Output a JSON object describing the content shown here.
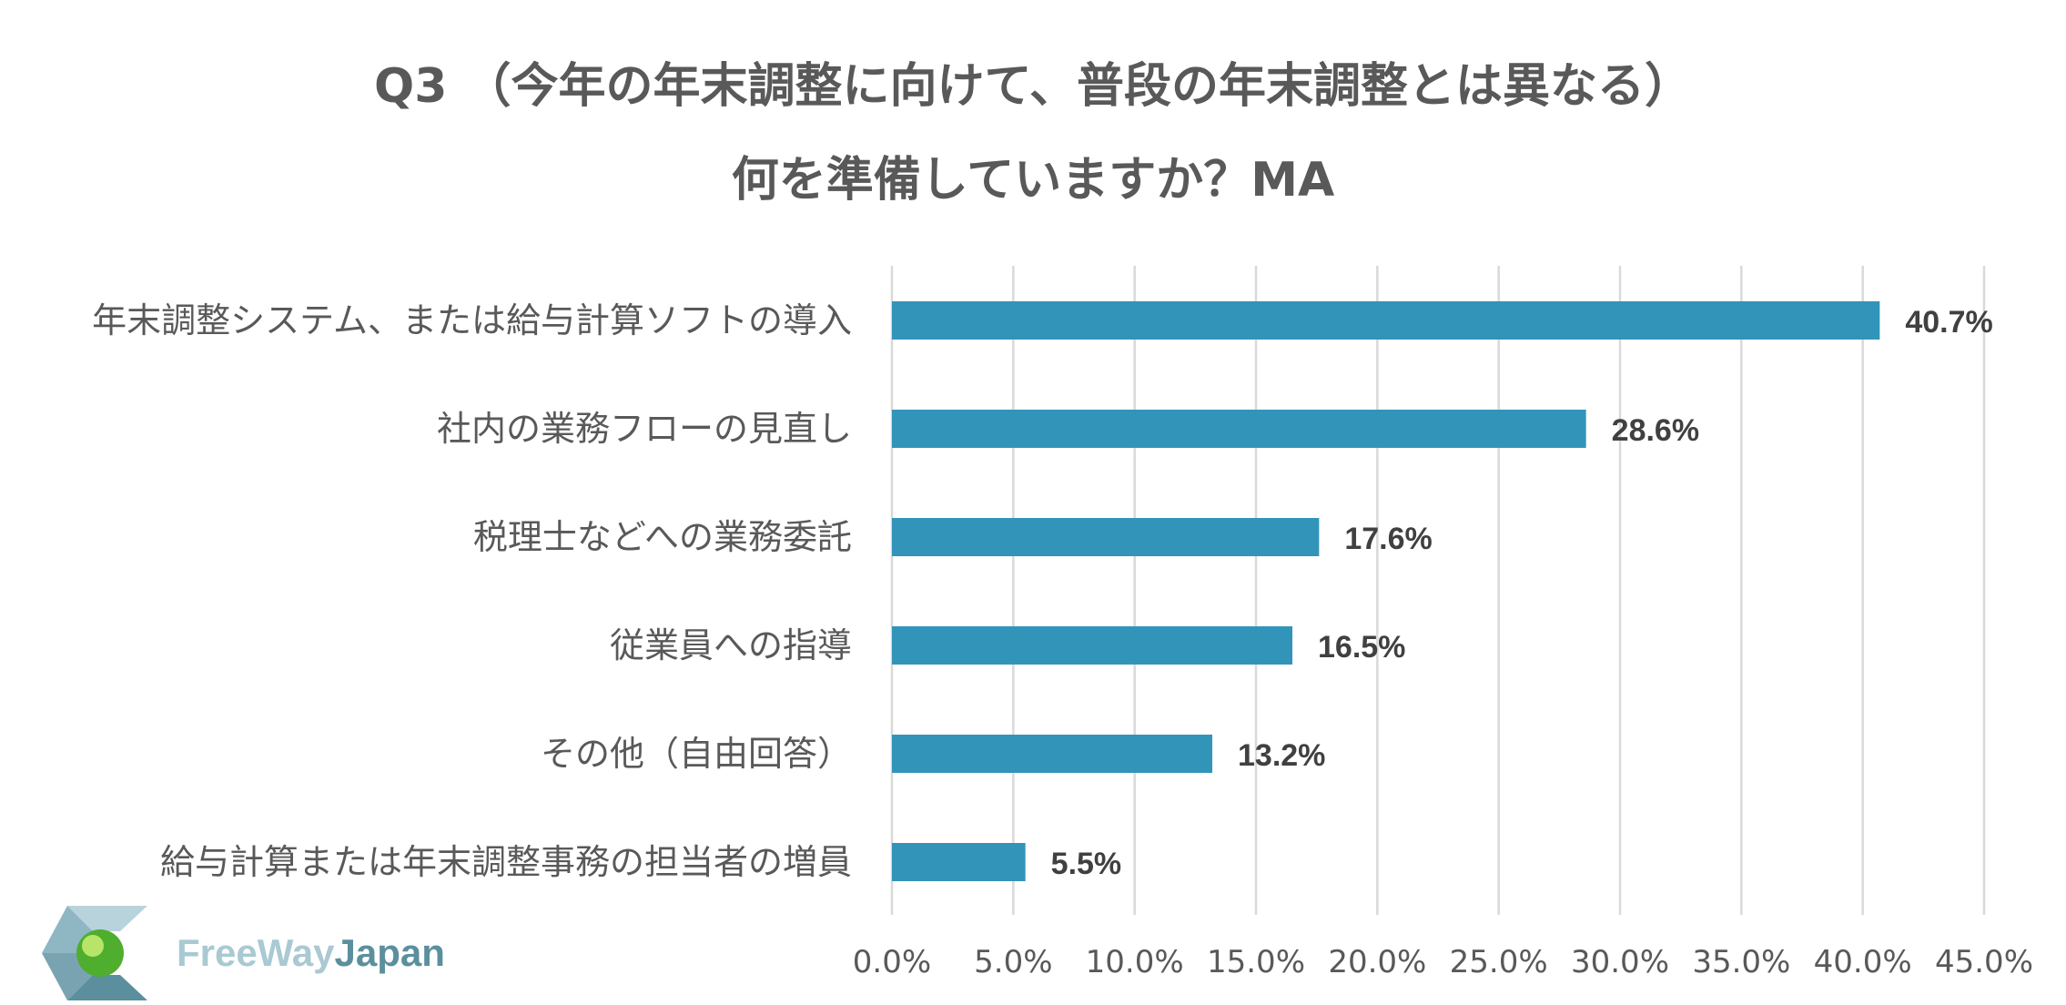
{
  "title_line1": "Q3 （今年の年末調整に向けて、普段の年末調整とは異なる）",
  "title_line2": "何を準備していますか？MA",
  "logo": {
    "part1": "FreeWay",
    "part2": "Japan",
    "icon": "freewayjapan-logo-icon"
  },
  "colors": {
    "bar": "#3394BA",
    "grid": "#D9D9D9",
    "label": "#595959",
    "value": "#404040"
  },
  "chart_data": {
    "type": "bar",
    "orientation": "horizontal",
    "categories": [
      "年末調整システム、または給与計算ソフトの導入",
      "社内の業務フローの見直し",
      "税理士などへの業務委託",
      "従業員への指導",
      "その他（自由回答）",
      "給与計算または年末調整事務の担当者の増員"
    ],
    "values": [
      40.7,
      28.6,
      17.6,
      16.5,
      13.2,
      5.5
    ],
    "value_labels": [
      "40.7%",
      "28.6%",
      "17.6%",
      "16.5%",
      "13.2%",
      "5.5%"
    ],
    "xlim": [
      0,
      45
    ],
    "x_ticks": [
      0,
      5,
      10,
      15,
      20,
      25,
      30,
      35,
      40,
      45
    ],
    "x_tick_labels": [
      "0.0%",
      "5.0%",
      "10.0%",
      "15.0%",
      "20.0%",
      "25.0%",
      "30.0%",
      "35.0%",
      "40.0%",
      "45.0%"
    ],
    "grid": true,
    "legend": "none"
  }
}
